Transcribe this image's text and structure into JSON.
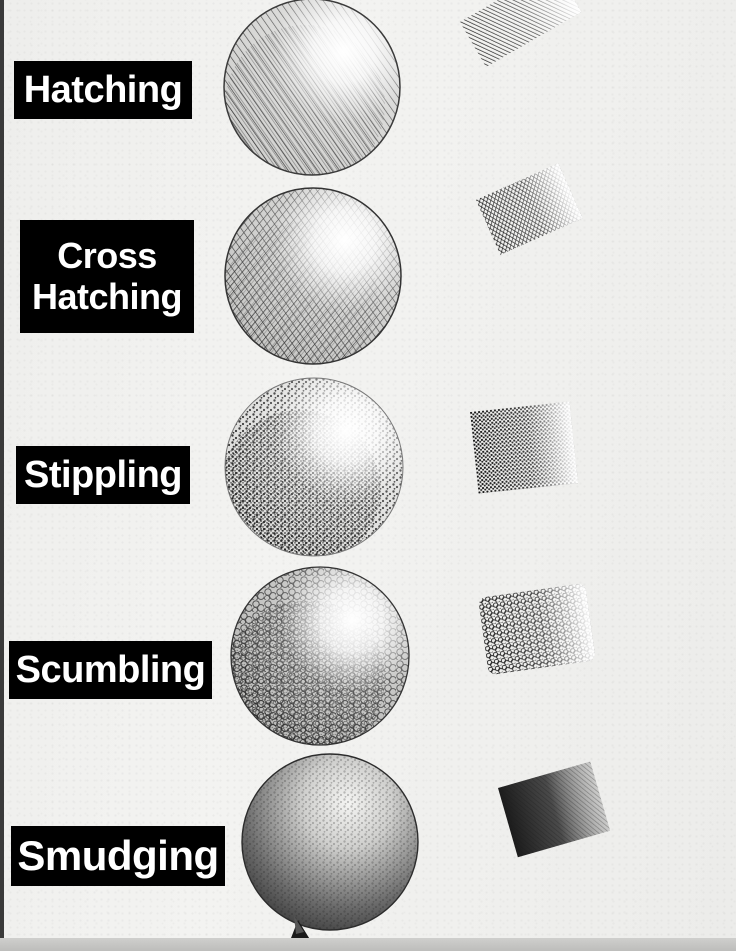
{
  "techniques": [
    {
      "label": "Hatching"
    },
    {
      "label": "Cross\nHatching"
    },
    {
      "label": "Stippling"
    },
    {
      "label": "Scumbling"
    },
    {
      "label": "Smudging"
    }
  ]
}
